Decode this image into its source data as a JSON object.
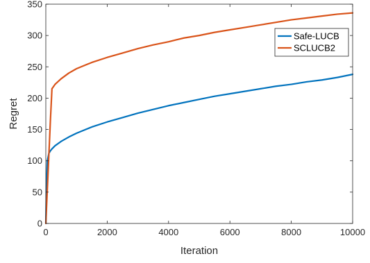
{
  "chart_data": {
    "type": "line",
    "title": "",
    "xlabel": "Iteration",
    "ylabel": "Regret",
    "xlim": [
      0,
      10000
    ],
    "ylim": [
      0,
      350
    ],
    "xticks": [
      0,
      2000,
      4000,
      6000,
      8000,
      10000
    ],
    "yticks": [
      0,
      50,
      100,
      150,
      200,
      250,
      300,
      350
    ],
    "grid": false,
    "legend_position": "top-right",
    "series": [
      {
        "name": "Safe-LUCB",
        "color": "#0072BD",
        "x": [
          0,
          20,
          50,
          100,
          150,
          200,
          300,
          500,
          750,
          1000,
          1500,
          2000,
          2500,
          3000,
          3500,
          4000,
          4500,
          5000,
          5500,
          6000,
          6500,
          7000,
          7500,
          8000,
          8500,
          9000,
          9500,
          10000
        ],
        "y": [
          0,
          55,
          100,
          112,
          116,
          119,
          124,
          131,
          138,
          144,
          154,
          162,
          169,
          176,
          182,
          188,
          193,
          198,
          203,
          207,
          211,
          215,
          219,
          222,
          226,
          229,
          233,
          238
        ]
      },
      {
        "name": "SCLUCB2",
        "color": "#D95319",
        "x": [
          0,
          50,
          100,
          150,
          200,
          300,
          500,
          750,
          1000,
          1500,
          2000,
          2500,
          3000,
          3500,
          4000,
          4500,
          5000,
          5500,
          6000,
          6500,
          7000,
          7500,
          8000,
          8500,
          9000,
          9500,
          10000
        ],
        "y": [
          0,
          55,
          110,
          165,
          215,
          222,
          231,
          240,
          247,
          257,
          265,
          272,
          279,
          285,
          290,
          296,
          300,
          305,
          309,
          313,
          317,
          321,
          325,
          328,
          331,
          334,
          336
        ]
      }
    ]
  }
}
